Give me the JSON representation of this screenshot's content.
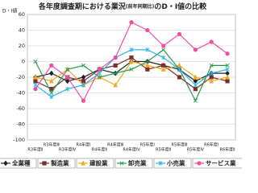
{
  "chart_data": {
    "type": "line",
    "title": [
      "各年度調査期における業況",
      "(前年同期比)",
      "のD・I値の比較"
    ],
    "y_label": "D・I値",
    "categories": [
      "R3年度Ⅱ",
      "R3年度Ⅲ",
      "R3年度Ⅳ",
      "R4年度Ⅰ",
      "R4年度Ⅱ",
      "R4年度Ⅲ",
      "R4年度Ⅳ",
      "R5年度Ⅰ",
      "R5年度Ⅱ",
      "R5年度Ⅲ",
      "R5年度Ⅳ",
      "R6年度Ⅰ",
      "R6年度Ⅱ"
    ],
    "ylim": [
      -100,
      60
    ],
    "yticks": [
      60,
      40,
      20,
      0,
      -20,
      -40,
      -60,
      -80,
      -100
    ],
    "grid": true,
    "series": [
      {
        "name": "全業種",
        "color": "#222222",
        "marker": "diamond",
        "values": [
          -20,
          -15,
          -25,
          -20,
          -10,
          -15,
          0,
          0,
          -5,
          -10,
          -25,
          -15,
          -15
        ]
      },
      {
        "name": "製造業",
        "color": "#7a2e2e",
        "marker": "square",
        "values": [
          -25,
          -35,
          -20,
          -25,
          -10,
          -5,
          5,
          -10,
          -5,
          -20,
          -35,
          -20,
          -25
        ]
      },
      {
        "name": "建設業",
        "color": "#f5a623",
        "marker": "triangle",
        "values": [
          -20,
          -25,
          -10,
          -30,
          -20,
          -30,
          0,
          -5,
          -10,
          -5,
          -20,
          -25,
          -20
        ]
      },
      {
        "name": "卸売業",
        "color": "#2a9d4b",
        "marker": "cross",
        "values": [
          0,
          -40,
          -10,
          -5,
          -20,
          -15,
          -10,
          0,
          15,
          -10,
          -50,
          -5,
          -5
        ]
      },
      {
        "name": "小売業",
        "color": "#2bb5e8",
        "marker": "star",
        "values": [
          -30,
          -45,
          -35,
          -30,
          -15,
          5,
          15,
          15,
          5,
          -10,
          -30,
          -15,
          -10
        ]
      },
      {
        "name": "サービス業",
        "color": "#ee4fa0",
        "marker": "circle",
        "values": [
          -35,
          -5,
          -20,
          -50,
          -10,
          5,
          50,
          40,
          20,
          35,
          15,
          25,
          10
        ]
      }
    ]
  }
}
